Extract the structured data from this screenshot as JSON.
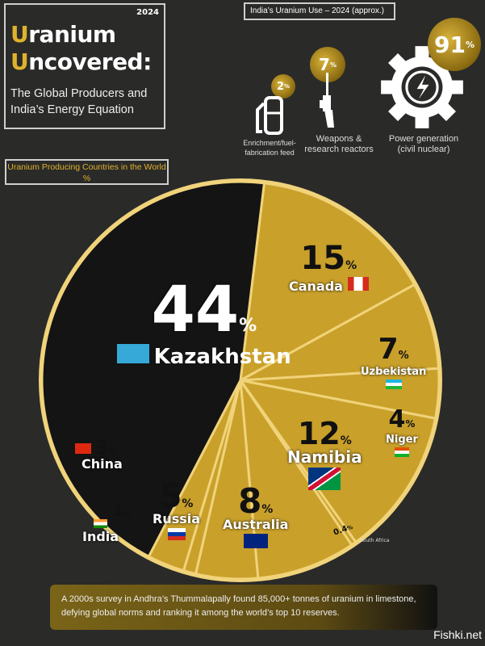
{
  "header": {
    "year": "2024",
    "title_line1_initial": "U",
    "title_line1_rest": "ranium",
    "title_line2_initial": "U",
    "title_line2_rest": "ncovered",
    "title_colon": ":",
    "subtitle_line1": "The Global Producers and",
    "subtitle_line2": "India’s Energy Equation"
  },
  "india_use": {
    "title": "India’s Uranium Use – 2024 (approx.)",
    "items": [
      {
        "value": "2",
        "unit": "%",
        "label_line1": "Enrichment/fuel-",
        "label_line2": "fabrication feed",
        "icon": "fuel-pump-icon"
      },
      {
        "value": "7",
        "unit": "%",
        "label_line1": "Weapons &",
        "label_line2": "research reactors",
        "icon": "rifle-icon"
      },
      {
        "value": "91",
        "unit": "%",
        "label_line1": "Power generation",
        "label_line2": "(civil nuclear)",
        "icon": "gear-lightning-icon"
      }
    ]
  },
  "chart_data": {
    "type": "pie",
    "title": "Uranium Producing Countries in the World %",
    "unit": "%",
    "categories": [
      "Canada",
      "Uzbekistan",
      "Niger",
      "Namibia",
      "South Africa",
      "Australia",
      "Russia",
      "India",
      "China",
      "Kazakhstan"
    ],
    "values": [
      15,
      7,
      4,
      12,
      0.4,
      8,
      5,
      1,
      3,
      44
    ],
    "value_labels": [
      "15",
      "7",
      "4",
      "12",
      "0.4",
      "8",
      "5",
      "1",
      "3",
      "44"
    ],
    "colors": {
      "default": "#c9a02a",
      "Kazakhstan": "#141414",
      "border": "#f0d37a"
    }
  },
  "note": "A 2000s survey in Andhra’s Thummalapally found 85,000+ tonnes of uranium in limestone, defying global norms and ranking it among the world’s top 10 reserves.",
  "watermark": "Fishki.net"
}
